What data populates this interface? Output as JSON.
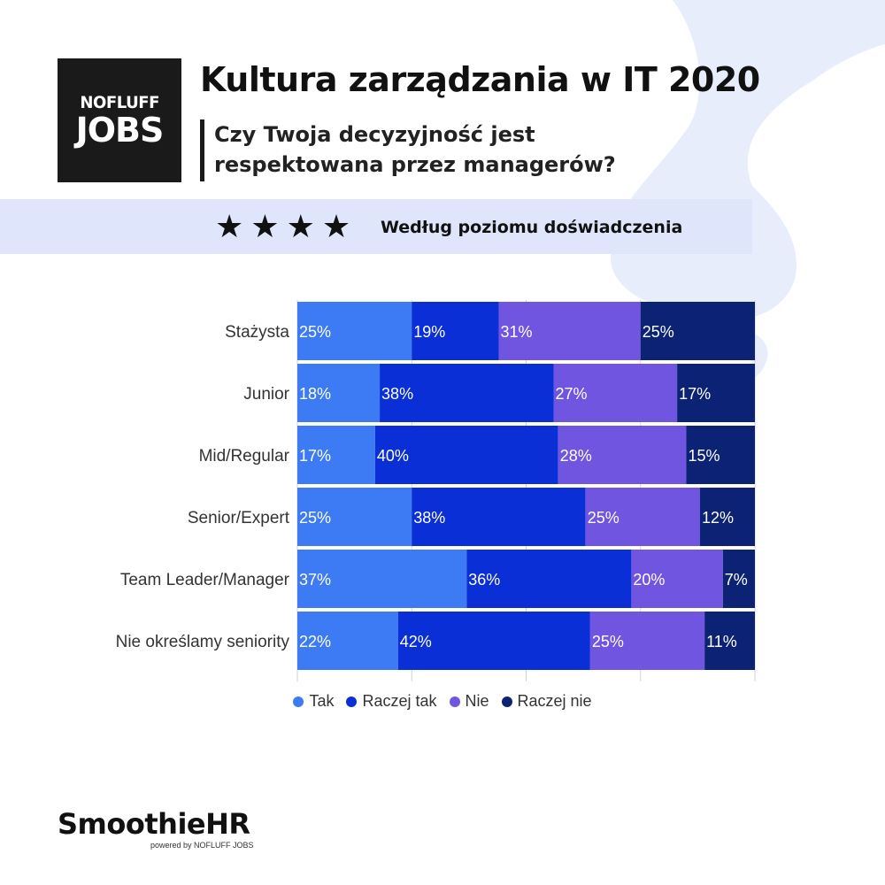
{
  "header": {
    "logo_top": "NOFLUFF",
    "logo_bottom": "JOBS",
    "title": "Kultura zarządzania w IT 2020",
    "subtitle_line1": "Czy Twoja decyzyjność jest",
    "subtitle_line2": "respektowana przez managerów?",
    "band_label": "Według poziomu doświadczenia",
    "stars": 4
  },
  "footer": {
    "brand": "SmoothieHR",
    "powered": "powered by NOFLUFF JOBS"
  },
  "colors": {
    "Tak": "#3d7bf5",
    "Raczej tak": "#0a2fd6",
    "Nie": "#7055e0",
    "Raczej nie": "#0c2375"
  },
  "chart_data": {
    "type": "bar",
    "orientation": "horizontal",
    "stacked": true,
    "normalized": true,
    "categories": [
      "Stażysta",
      "Junior",
      "Mid/Regular",
      "Senior/Expert",
      "Team Leader/Manager",
      "Nie określamy seniority"
    ],
    "series": [
      {
        "name": "Tak",
        "values": [
          25,
          18,
          17,
          25,
          37,
          22
        ]
      },
      {
        "name": "Raczej tak",
        "values": [
          19,
          38,
          40,
          38,
          36,
          42
        ]
      },
      {
        "name": "Nie",
        "values": [
          31,
          27,
          28,
          25,
          20,
          25
        ]
      },
      {
        "name": "Raczej nie",
        "values": [
          25,
          17,
          15,
          12,
          7,
          11
        ]
      }
    ],
    "value_suffix": "%",
    "xlim": [
      0,
      100
    ],
    "legend_position": "bottom"
  }
}
